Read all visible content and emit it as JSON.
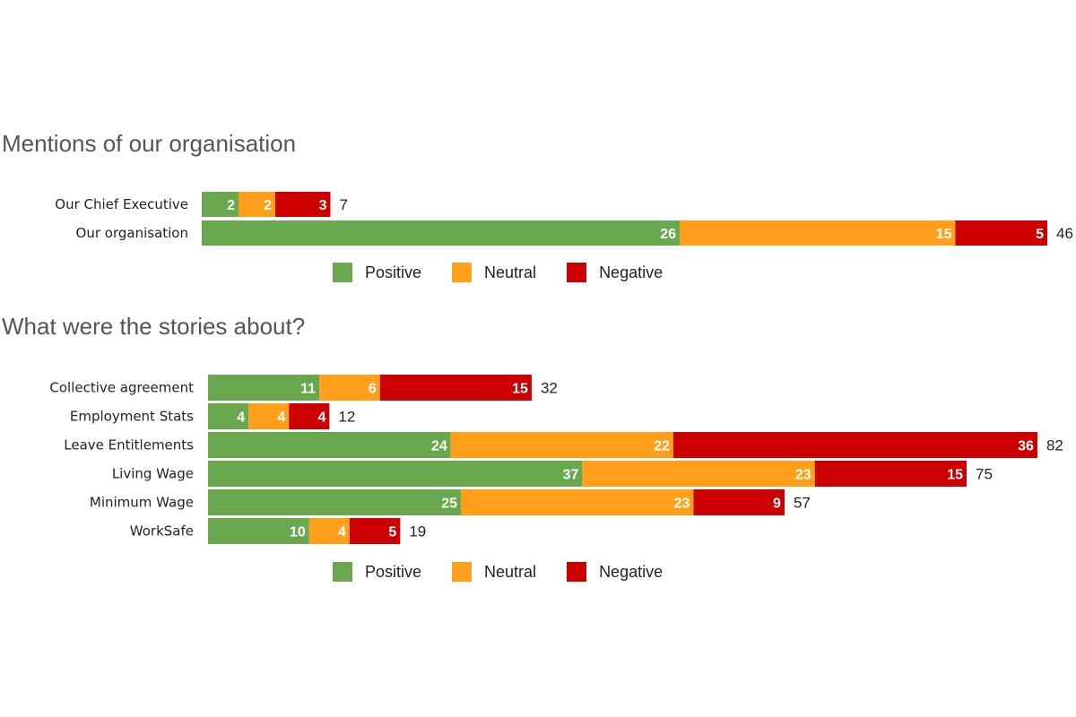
{
  "colors": {
    "positive": "#6aa84f",
    "neutral": "#ff9f1c",
    "negative": "#cc0000"
  },
  "legend": {
    "positive": "Positive",
    "neutral": "Neutral",
    "negative": "Negative"
  },
  "chart_data": [
    {
      "type": "bar",
      "orientation": "horizontal",
      "stacked": true,
      "title": "Mentions of our organisation",
      "categories": [
        "Our Chief Executive",
        "Our organisation"
      ],
      "series": [
        {
          "name": "Positive",
          "values": [
            2,
            26
          ]
        },
        {
          "name": "Neutral",
          "values": [
            2,
            15
          ]
        },
        {
          "name": "Negative",
          "values": [
            3,
            5
          ]
        }
      ],
      "totals": [
        7,
        46
      ],
      "legend_position": "bottom"
    },
    {
      "type": "bar",
      "orientation": "horizontal",
      "stacked": true,
      "title": "What were the stories about?",
      "categories": [
        "Collective agreement",
        "Employment Stats",
        "Leave Entitlements",
        "Living Wage",
        "Minimum Wage",
        "WorkSafe"
      ],
      "series": [
        {
          "name": "Positive",
          "values": [
            11,
            4,
            24,
            37,
            25,
            10
          ]
        },
        {
          "name": "Neutral",
          "values": [
            6,
            4,
            22,
            23,
            23,
            4
          ]
        },
        {
          "name": "Negative",
          "values": [
            15,
            4,
            36,
            15,
            9,
            5
          ]
        }
      ],
      "totals": [
        32,
        12,
        82,
        75,
        57,
        19
      ],
      "legend_position": "bottom"
    }
  ]
}
